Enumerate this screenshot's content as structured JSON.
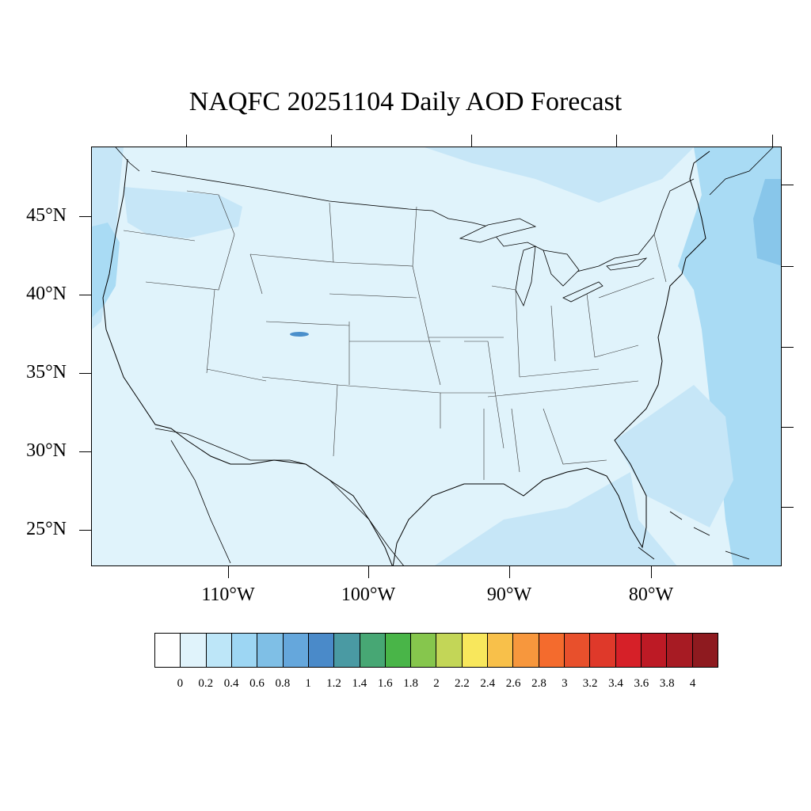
{
  "title": "NAQFC 20251104 Daily AOD Forecast",
  "map": {
    "lat_labels": [
      "45°N",
      "40°N",
      "35°N",
      "30°N",
      "25°N"
    ],
    "lon_labels": [
      "110°W",
      "100°W",
      "90°W",
      "80°W"
    ],
    "colors": {
      "background_field": "#e0f3fb",
      "land_field": "#def1fa",
      "ocean_haze": "#c6e6f7",
      "ocean_haze_strong": "#a9dbf4",
      "ocean_haze_max": "#88c6ea",
      "hotspot": "#4a8fcb",
      "borders": "#000000"
    }
  },
  "colorbar": {
    "labels": [
      "0",
      "0.2",
      "0.4",
      "0.6",
      "0.8",
      "1",
      "1.2",
      "1.4",
      "1.6",
      "1.8",
      "2",
      "2.2",
      "2.4",
      "2.6",
      "2.8",
      "3",
      "3.2",
      "3.4",
      "3.6",
      "3.8",
      "4"
    ],
    "colors": [
      "#ffffff",
      "#e0f3fb",
      "#bde6f8",
      "#9dd6f3",
      "#7fbfe6",
      "#65a7dc",
      "#4a8ac9",
      "#4a9aa3",
      "#47a774",
      "#49b548",
      "#86c64d",
      "#c3d657",
      "#f8e75c",
      "#f8c04a",
      "#f7973d",
      "#f46b2d",
      "#e8502c",
      "#df392a",
      "#d62028",
      "#bd1a25",
      "#a71b23",
      "#8e1a1f"
    ]
  }
}
